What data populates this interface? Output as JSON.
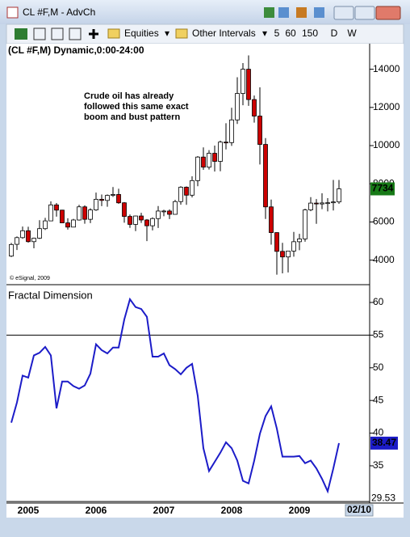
{
  "window": {
    "title": "CL #F,M - AdvCh"
  },
  "toolbar": {
    "menus": [
      "Equities",
      "Other Intervals"
    ],
    "intervals": [
      "5",
      "60",
      "150",
      "D",
      "W"
    ]
  },
  "date_label": "02/10",
  "chart_data": [
    {
      "type": "candlestick",
      "title": "(CL #F,M) Dynamic,0:00-24:00",
      "annotation": [
        "Crude oil has already",
        "followed this same exact",
        "boom and bust pattern"
      ],
      "credit": "© eSignal, 2009",
      "up_color": "#ffffff",
      "down_color": "#cc0000",
      "open": [
        4212,
        4830,
        5180,
        5540,
        4970,
        5150,
        5650,
        6057,
        6894,
        6620,
        5953,
        5732,
        6104,
        6792,
        6140,
        6630,
        7188,
        7129,
        7394,
        7440,
        7004,
        6291,
        5873,
        6313,
        6105,
        5801,
        6179,
        6572,
        6574,
        6401,
        7068,
        7821,
        7404,
        8166,
        9400,
        8871,
        9598,
        9175,
        10184,
        10158,
        11346,
        12731,
        14000,
        12412,
        11546,
        10062,
        6791,
        5443,
        4460,
        4168,
        4476,
        4966,
        5112,
        6631,
        6989,
        6945,
        6996,
        7007,
        7050
      ],
      "high": [
        4900,
        5240,
        5760,
        5750,
        5180,
        6095,
        6215,
        7080,
        6996,
        6640,
        6195,
        6160,
        6899,
        6870,
        6717,
        7540,
        7440,
        7440,
        7830,
        7740,
        7040,
        6390,
        6330,
        6480,
        6150,
        6241,
        6834,
        6640,
        6660,
        7159,
        7874,
        7864,
        8390,
        9453,
        9907,
        9762,
        10000,
        10260,
        11172,
        11980,
        13582,
        14324,
        14727,
        12625,
        13049,
        10395,
        7176,
        5458,
        4910,
        4490,
        5479,
        5380,
        6690,
        7300,
        7200,
        7500,
        7247,
        8200,
        8200
      ],
      "low": [
        4160,
        4530,
        5120,
        4920,
        4620,
        5110,
        5580,
        6040,
        6280,
        5940,
        5602,
        5730,
        6070,
        5910,
        5940,
        6580,
        6830,
        6800,
        7310,
        6950,
        5960,
        5690,
        5520,
        5950,
        4995,
        5560,
        5685,
        6300,
        6150,
        6390,
        6902,
        6900,
        7287,
        7874,
        8732,
        8748,
        8642,
        8659,
        9802,
        9985,
        11136,
        12115,
        12082,
        11201,
        9013,
        6157,
        4810,
        3240,
        3310,
        3358,
        4180,
        4520,
        4964,
        6563,
        5905,
        6670,
        6552,
        6600,
        6950
      ],
      "close": [
        4820,
        5180,
        5540,
        4970,
        5150,
        5650,
        6057,
        6894,
        6620,
        5953,
        5732,
        6104,
        6792,
        6140,
        6630,
        7188,
        7129,
        7394,
        7440,
        7004,
        6291,
        5873,
        6313,
        6105,
        5801,
        6179,
        6572,
        6574,
        6401,
        7068,
        7821,
        7404,
        8166,
        9400,
        8871,
        9598,
        9175,
        10184,
        10158,
        11346,
        12731,
        14000,
        12412,
        11546,
        10062,
        6791,
        5443,
        4460,
        4168,
        4476,
        4966,
        5112,
        6631,
        6989,
        6945,
        6996,
        7007,
        7050,
        7734
      ],
      "last_label_color": "#177a17",
      "ylim": [
        2800,
        15000
      ],
      "yticks": [
        4000,
        6000,
        8000,
        10000,
        12000,
        14000
      ]
    },
    {
      "type": "line",
      "title": "Fractal Dimension",
      "color": "#1c1cc8",
      "categories": [
        null,
        null,
        null,
        "2005",
        null,
        null,
        null,
        null,
        null,
        null,
        null,
        null,
        null,
        null,
        null,
        "2006",
        null,
        null,
        null,
        null,
        null,
        null,
        null,
        null,
        null,
        null,
        null,
        "2007",
        null,
        null,
        null,
        null,
        null,
        null,
        null,
        null,
        null,
        null,
        null,
        "2008",
        null,
        null,
        null,
        null,
        null,
        null,
        null,
        null,
        null,
        null,
        null,
        "2009",
        null,
        null,
        null,
        null,
        null,
        null,
        null
      ],
      "values": [
        41.6,
        44.7,
        48.8,
        48.5,
        51.9,
        52.3,
        53.2,
        51.9,
        43.8,
        47.9,
        47.9,
        47.2,
        46.8,
        47.3,
        49.1,
        53.6,
        52.7,
        52.2,
        53.1,
        53.1,
        57.4,
        60.5,
        59.3,
        59.0,
        57.8,
        51.7,
        51.7,
        52.2,
        50.4,
        49.8,
        49.0,
        50.0,
        50.6,
        45.7,
        37.7,
        34.2,
        35.6,
        37.0,
        38.6,
        37.7,
        35.8,
        32.7,
        32.3,
        35.8,
        39.9,
        42.6,
        44.1,
        40.7,
        36.4,
        36.4,
        36.4,
        36.5,
        35.4,
        35.8,
        34.6,
        33.0,
        31.1,
        34.6,
        38.47
      ],
      "hlines": [
        55,
        29.53
      ],
      "ylim": [
        29.3,
        62.6
      ],
      "yticks": [
        35,
        40,
        45,
        50,
        55,
        60
      ]
    }
  ]
}
